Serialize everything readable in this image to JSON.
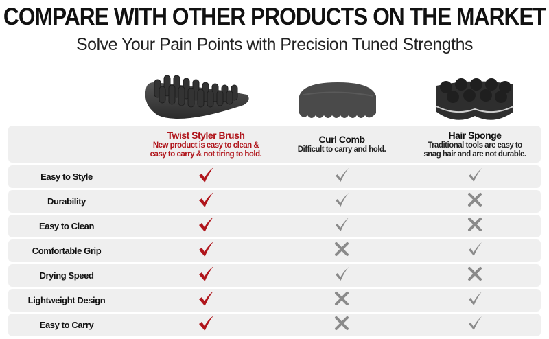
{
  "header": {
    "title": "COMPARE WITH OTHER PRODUCTS ON THE MARKET",
    "subtitle": "Solve Your Pain Points with Precision Tuned Strengths"
  },
  "colors": {
    "accent": "#b0151b",
    "neutral_mark": "#8a8a8a",
    "row_bg": "#efefef"
  },
  "products": [
    {
      "name": "Twist Styler Brush",
      "description_line1": "New product is easy to clean &",
      "description_line2": "easy to carry & not tiring to hold.",
      "image": "twist-styler-brush"
    },
    {
      "name": "Curl Comb",
      "description_line1": "Difficult to carry and hold.",
      "description_line2": "",
      "image": "curl-comb"
    },
    {
      "name": "Hair Sponge",
      "description_line1": "Traditional tools are easy to",
      "description_line2": "snag hair and are not durable.",
      "image": "hair-sponge"
    }
  ],
  "rows": [
    {
      "feature": "Easy to Style",
      "values": [
        true,
        true,
        true
      ]
    },
    {
      "feature": "Durability",
      "values": [
        true,
        true,
        false
      ]
    },
    {
      "feature": "Easy to Clean",
      "values": [
        true,
        true,
        false
      ]
    },
    {
      "feature": "Comfortable Grip",
      "values": [
        true,
        false,
        true
      ]
    },
    {
      "feature": "Drying Speed",
      "values": [
        true,
        true,
        false
      ]
    },
    {
      "feature": "Lightweight Design",
      "values": [
        true,
        false,
        true
      ]
    },
    {
      "feature": "Easy to Carry",
      "values": [
        true,
        false,
        true
      ]
    }
  ]
}
